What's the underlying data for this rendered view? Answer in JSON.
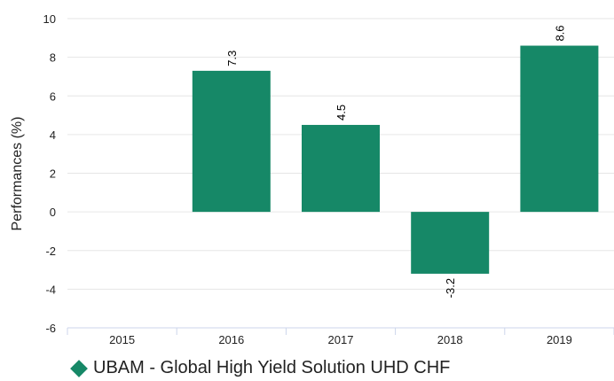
{
  "chart_data": {
    "type": "bar",
    "categories": [
      "2015",
      "2016",
      "2017",
      "2018",
      "2019"
    ],
    "series": [
      {
        "name": "UBAM - Global High Yield Solution UHD CHF",
        "values": [
          null,
          7.3,
          4.5,
          -3.2,
          8.6
        ]
      }
    ],
    "data_labels": [
      "",
      "7.3",
      "4.5",
      "-3.2",
      "8.6"
    ],
    "title": "",
    "xlabel": "",
    "ylabel": "Performances (%)",
    "ylim": [
      -6,
      10
    ],
    "yticks": [
      -6,
      -4,
      -2,
      0,
      2,
      4,
      6,
      8,
      10
    ],
    "grid": true,
    "legend_placement": "bottom-left",
    "colors": {
      "bar": "#168867",
      "grid": "#e6e6e6",
      "axis": "#ccd6eb",
      "text": "#222222"
    }
  }
}
